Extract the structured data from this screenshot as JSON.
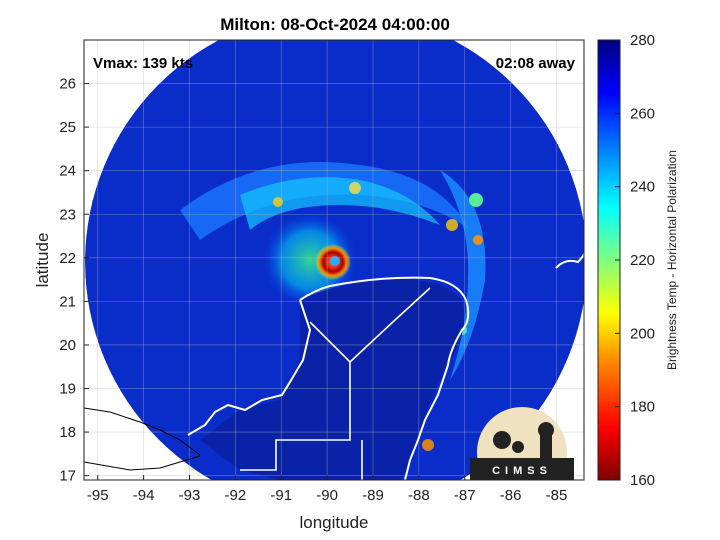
{
  "chart_data": {
    "type": "heatmap",
    "title": "Milton: 08-Oct-2024 04:00:00",
    "xlabel": "longitude",
    "ylabel": "latitude",
    "xlim": [
      -95.3,
      -84.4
    ],
    "ylim": [
      16.9,
      27.0
    ],
    "x_ticks": [
      "-95",
      "-94",
      "-93",
      "-92",
      "-91",
      "-90",
      "-89",
      "-88",
      "-87",
      "-86",
      "-85"
    ],
    "y_ticks": [
      "17",
      "18",
      "19",
      "20",
      "21",
      "22",
      "23",
      "24",
      "25",
      "26"
    ],
    "grid": true,
    "storm_center": {
      "lon": -89.7,
      "lat": 21.95
    },
    "scan_radius_deg": 5.6,
    "annotations": {
      "vmax": "Vmax: 139 kts",
      "time_away": "02:08 away"
    },
    "colorbar": {
      "label": "Brightness Temp - Horizontal Polarization",
      "min": 160,
      "max": 280,
      "ticks": [
        "280",
        "260",
        "240",
        "220",
        "200",
        "180",
        "160"
      ],
      "colormap": [
        "#800000",
        "#ff0000",
        "#ff8000",
        "#ffff00",
        "#80ff80",
        "#00ffff",
        "#0080ff",
        "#0000ff",
        "#000080"
      ]
    }
  },
  "logo": {
    "text": "CIMSS"
  },
  "colors": {
    "background_ocean": "#0a2cc8",
    "land_dark": "#0a1ea0",
    "coastline": "#ffffff",
    "border": "#000000"
  }
}
